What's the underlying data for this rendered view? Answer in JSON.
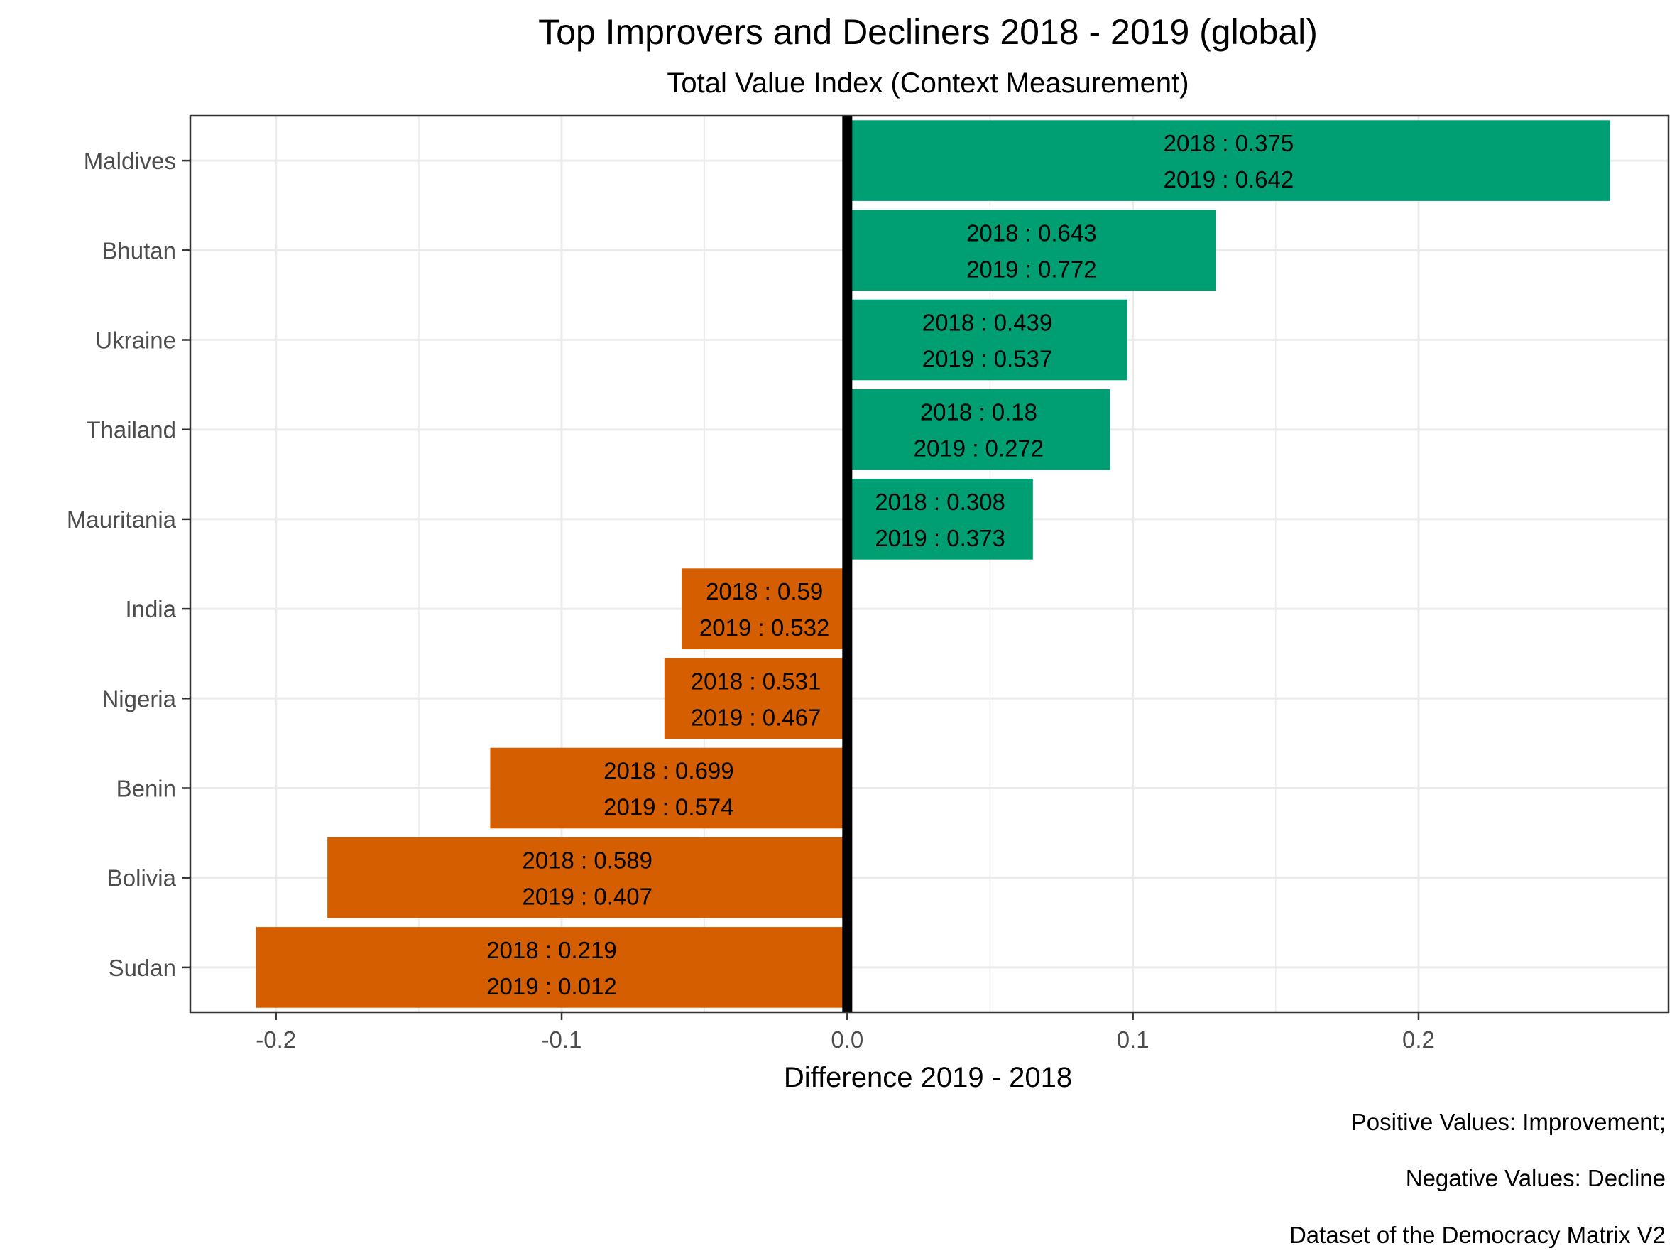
{
  "chart_data": {
    "type": "bar",
    "orientation": "horizontal",
    "title": "Top Improvers and Decliners 2018 - 2019 (global)",
    "subtitle": "Total Value Index (Context Measurement)",
    "xlabel": "Difference 2019 - 2018",
    "ylabel": "",
    "xlim": [
      -0.23,
      0.2875
    ],
    "x_ticks": [
      -0.2,
      -0.1,
      0.0,
      0.1,
      0.2
    ],
    "x_tick_labels": [
      "-0.2",
      "-0.1",
      "0.0",
      "0.1",
      "0.2"
    ],
    "grid": true,
    "colors": {
      "positive": "#009E73",
      "negative": "#D55E00",
      "zero_line": "#000000",
      "grid": "#EBEBEB"
    },
    "categories": [
      "Maldives",
      "Bhutan",
      "Ukraine",
      "Thailand",
      "Mauritania",
      "India",
      "Nigeria",
      "Benin",
      "Bolivia",
      "Sudan"
    ],
    "values": [
      0.267,
      0.129,
      0.098,
      0.092,
      0.065,
      -0.058,
      -0.064,
      -0.125,
      -0.182,
      -0.207
    ],
    "labels": [
      {
        "line1": "2018 : 0.375",
        "line2": "2019 : 0.642"
      },
      {
        "line1": "2018 : 0.643",
        "line2": "2019 : 0.772"
      },
      {
        "line1": "2018 : 0.439",
        "line2": "2019 : 0.537"
      },
      {
        "line1": "2018 : 0.18",
        "line2": "2019 : 0.272"
      },
      {
        "line1": "2018 : 0.308",
        "line2": "2019 : 0.373"
      },
      {
        "line1": "2018 : 0.59",
        "line2": "2019 : 0.532"
      },
      {
        "line1": "2018 : 0.531",
        "line2": "2019 : 0.467"
      },
      {
        "line1": "2018 : 0.699",
        "line2": "2019 : 0.574"
      },
      {
        "line1": "2018 : 0.589",
        "line2": "2019 : 0.407"
      },
      {
        "line1": "2018 : 0.219",
        "line2": "2019 : 0.012"
      }
    ],
    "captions": [
      "Positive Values: Improvement;",
      "Negative Values: Decline",
      "Dataset of the Democracy Matrix V2"
    ]
  }
}
